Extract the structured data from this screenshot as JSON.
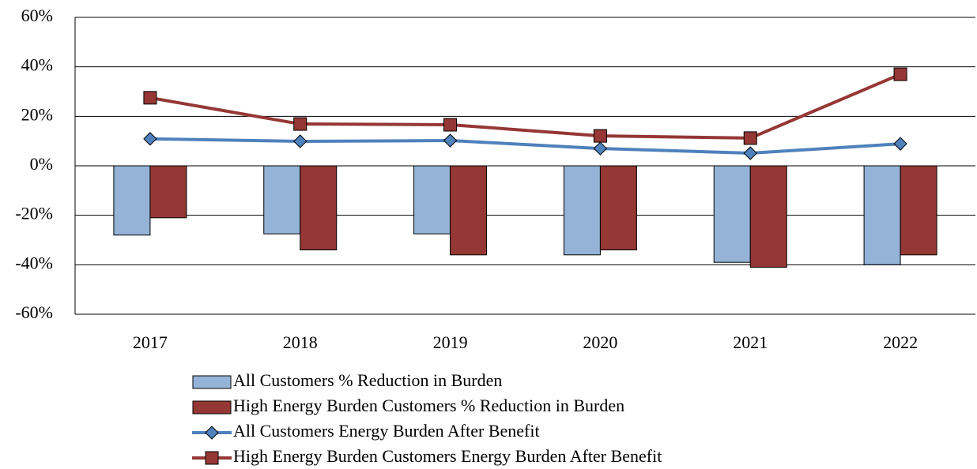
{
  "chart_data": {
    "type": "bar",
    "categories": [
      "2017",
      "2018",
      "2019",
      "2020",
      "2021",
      "2022"
    ],
    "series": [
      {
        "name": "All Customers % Reduction in Burden",
        "type": "bar",
        "color": "#95b3d7",
        "values": [
          -28,
          -27.5,
          -27.5,
          -36,
          -39,
          -40
        ]
      },
      {
        "name": "High Energy Burden Customers % Reduction in Burden",
        "type": "bar",
        "color": "#953735",
        "values": [
          -21,
          -34,
          -36,
          -34,
          -41,
          -36
        ]
      },
      {
        "name": "All Customers Energy Burden After Benefit",
        "type": "line",
        "marker": "diamond",
        "color": "#4f81bd",
        "values": [
          10.9,
          9.9,
          10.2,
          7,
          5.1,
          8.9
        ]
      },
      {
        "name": "High Energy Burden Customers Energy Burden After Benefit",
        "type": "line",
        "marker": "square",
        "color": "#953735",
        "values": [
          27.5,
          16.9,
          16.6,
          12.1,
          11.2,
          37
        ]
      }
    ],
    "ylim": [
      -60,
      60
    ],
    "yticks": [
      {
        "value": -60,
        "label": "-60%"
      },
      {
        "value": -40,
        "label": "-40%"
      },
      {
        "value": -20,
        "label": "-20%"
      },
      {
        "value": 0,
        "label": "0%"
      },
      {
        "value": 20,
        "label": "20%"
      },
      {
        "value": 40,
        "label": "40%"
      },
      {
        "value": 60,
        "label": "60%"
      }
    ],
    "grid": true,
    "legend": "bottom"
  }
}
